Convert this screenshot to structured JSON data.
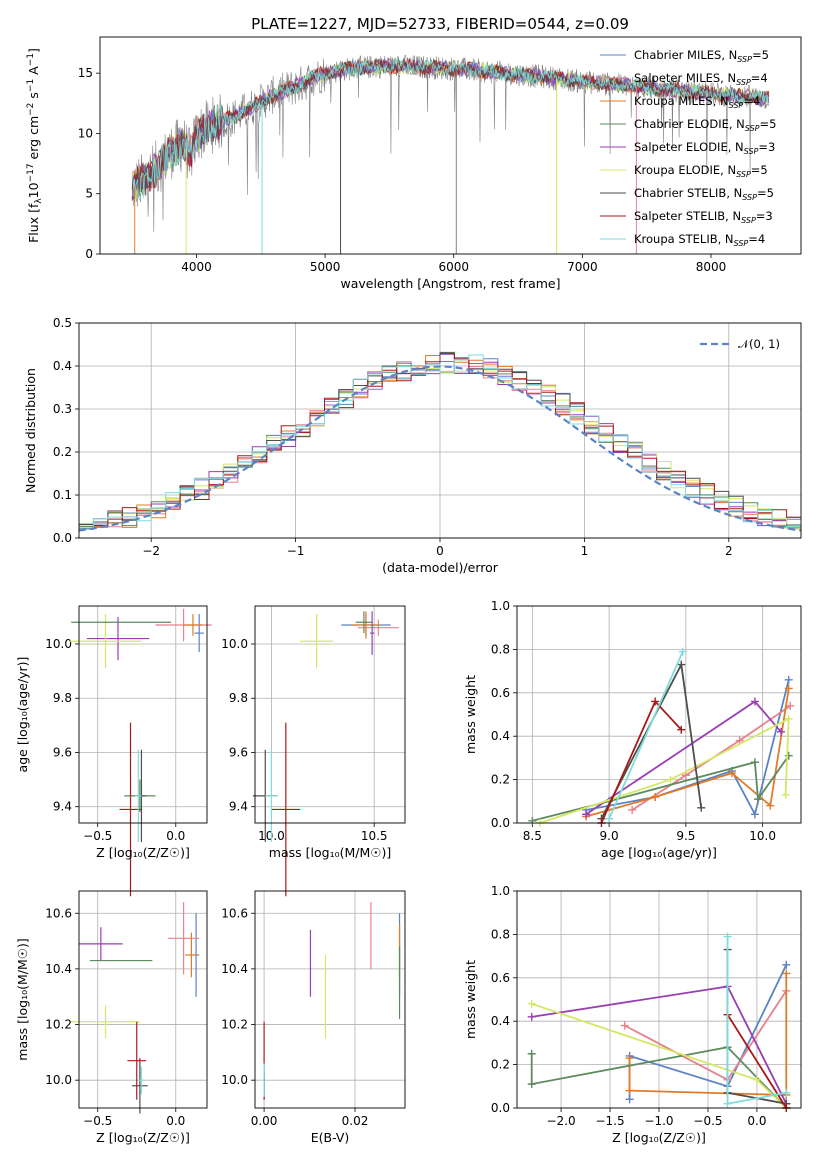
{
  "figure": {
    "title": "PLATE=1227, MJD=52733, FIBERID=0544, z=0.09"
  },
  "colors": {
    "chabrier_miles": "#5b84c4",
    "salpeter_miles": "#e8808e",
    "kroupa_miles": "#e07b29",
    "chabrier_elodie": "#5d8a5e",
    "salpeter_elodie": "#9a3fb2",
    "kroupa_elodie": "#d4e865",
    "chabrier_stelib": "#4e4e4e",
    "salpeter_stelib": "#a81a1a",
    "kroupa_stelib": "#7fdcdc",
    "data": "#808080"
  },
  "chart_data": [
    {
      "id": "spectrum",
      "type": "line",
      "xlabel": "wavelength [Angstrom, rest frame]",
      "ylabel_parts": [
        "Flux [f",
        "λ",
        "10",
        "−17",
        " erg cm",
        "−2",
        " s",
        "−1",
        " A",
        "−1",
        "]"
      ],
      "xlim": [
        3250,
        8700
      ],
      "ylim": [
        0,
        18
      ],
      "xticks": [
        4000,
        5000,
        6000,
        7000,
        8000
      ],
      "yticks": [
        0,
        5,
        10,
        15
      ],
      "legend": [
        {
          "label": "Chabrier MILES, N",
          "sub": "SSP",
          "eq": "=5",
          "color_key": "chabrier_miles"
        },
        {
          "label": "Salpeter MILES, N",
          "sub": "SSP",
          "eq": "=4",
          "color_key": "salpeter_miles"
        },
        {
          "label": "Kroupa MILES, N",
          "sub": "SSP",
          "eq": "=4",
          "color_key": "kroupa_miles"
        },
        {
          "label": "Chabrier ELODIE, N",
          "sub": "SSP",
          "eq": "=5",
          "color_key": "chabrier_elodie"
        },
        {
          "label": "Salpeter ELODIE, N",
          "sub": "SSP",
          "eq": "=3",
          "color_key": "salpeter_elodie"
        },
        {
          "label": "Kroupa ELODIE, N",
          "sub": "SSP",
          "eq": "=5",
          "color_key": "kroupa_elodie"
        },
        {
          "label": "Chabrier STELIB, N",
          "sub": "SSP",
          "eq": "=5",
          "color_key": "chabrier_stelib"
        },
        {
          "label": "Salpeter STELIB, N",
          "sub": "SSP",
          "eq": "=3",
          "color_key": "salpeter_stelib"
        },
        {
          "label": "Kroupa STELIB, N",
          "sub": "SSP",
          "eq": "=4",
          "color_key": "kroupa_stelib"
        }
      ],
      "continuum": [
        [
          3500,
          5.5
        ],
        [
          3600,
          6.2
        ],
        [
          3700,
          7.2
        ],
        [
          3800,
          8.5
        ],
        [
          3900,
          9.2
        ],
        [
          3950,
          8.0
        ],
        [
          4000,
          9.8
        ],
        [
          4100,
          10.6
        ],
        [
          4200,
          11.0
        ],
        [
          4300,
          11.4
        ],
        [
          4400,
          12.0
        ],
        [
          4500,
          12.6
        ],
        [
          4600,
          13.2
        ],
        [
          4700,
          13.6
        ],
        [
          4800,
          14.0
        ],
        [
          4900,
          14.6
        ],
        [
          5000,
          15.0
        ],
        [
          5200,
          15.4
        ],
        [
          5500,
          15.6
        ],
        [
          5800,
          15.5
        ],
        [
          6100,
          15.3
        ],
        [
          6400,
          15.0
        ],
        [
          6700,
          14.7
        ],
        [
          7000,
          14.3
        ],
        [
          7300,
          14.0
        ],
        [
          7600,
          13.7
        ],
        [
          7900,
          13.4
        ],
        [
          8200,
          13.1
        ],
        [
          8450,
          12.9
        ]
      ],
      "spikes": [
        [
          3520,
          0
        ],
        [
          3920,
          0
        ],
        [
          4510,
          0
        ],
        [
          5120,
          0
        ],
        [
          6020,
          0
        ],
        [
          6800,
          0
        ],
        [
          7420,
          0
        ]
      ]
    },
    {
      "id": "residuals",
      "type": "line",
      "xlabel": "(data-model)/error",
      "ylabel": "Normed distribution",
      "xlim": [
        -2.5,
        2.5
      ],
      "ylim": [
        0,
        0.5
      ],
      "xticks": [
        -2,
        -1,
        0,
        1,
        2
      ],
      "xtick_labels": [
        "−2",
        "−1",
        "0",
        "1",
        "2"
      ],
      "yticks": [
        0.0,
        0.1,
        0.2,
        0.3,
        0.4,
        0.5
      ],
      "ytick_labels": [
        "0.0",
        "0.1",
        "0.2",
        "0.3",
        "0.4",
        "0.5"
      ],
      "legend": [
        {
          "label": "𝒩(0, 1)",
          "color": "#5b84c4"
        }
      ],
      "bin_width": 0.1
    },
    {
      "id": "age-vs-z",
      "type": "scatter",
      "xlabel": "Z [log₁₀(Z/Z☉)]",
      "ylabel": "age  [log₁₀(age/yr)]",
      "xlim": [
        -0.62,
        0.2
      ],
      "ylim": [
        9.34,
        10.14
      ],
      "xticks": [
        -0.5,
        0.0
      ],
      "xtick_labels": [
        "−0.5",
        "0.0"
      ],
      "yticks": [
        9.4,
        9.6,
        9.8,
        10.0
      ],
      "yticks_labels": [
        "9.4",
        "9.6",
        "9.8",
        "10.0"
      ],
      "points": [
        {
          "c": "chabrier_miles",
          "x": 0.15,
          "y": 10.04,
          "xe": 0.03,
          "ye": 0.07
        },
        {
          "c": "salpeter_miles",
          "x": 0.05,
          "y": 10.07,
          "xe": 0.18,
          "ye": 0.06
        },
        {
          "c": "kroupa_miles",
          "x": 0.11,
          "y": 10.07,
          "xe": 0.06,
          "ye": 0.04
        },
        {
          "c": "chabrier_elodie",
          "x": -0.23,
          "y": 9.44,
          "xe": 0.1,
          "ye": 0.06
        },
        {
          "c": "salpeter_elodie",
          "x": -0.37,
          "y": 10.02,
          "xe": 0.2,
          "ye": 0.08
        },
        {
          "c": "kroupa_elodie",
          "x": -0.45,
          "y": 10.01,
          "xe": 0.23,
          "ye": 0.1
        },
        {
          "c": "chabrier_stelib",
          "x": -0.22,
          "y": 9.44,
          "xe": 0.03,
          "ye": 0.17
        },
        {
          "c": "salpeter_stelib",
          "x": -0.29,
          "y": 9.39,
          "xe": 0.07,
          "ye": 0.32
        },
        {
          "c": "kroupa_stelib",
          "x": -0.24,
          "y": 9.44,
          "xe": 0.02,
          "ye": 0.17
        },
        {
          "c": "chabrier_elodie",
          "x": -0.35,
          "y": 10.08,
          "xe": 0.32,
          "ye": 0.0
        }
      ]
    },
    {
      "id": "age-vs-mass",
      "type": "scatter",
      "xlabel": "mass [log₁₀(M/M☉)]",
      "xlim": [
        9.92,
        10.65
      ],
      "ylim": [
        9.34,
        10.14
      ],
      "xticks": [
        10.0,
        10.5
      ],
      "xtick_labels": [
        "10.0",
        "10.5"
      ],
      "yticks": [
        9.4,
        9.6,
        9.8,
        10.0
      ],
      "yticks_labels": [
        "9.4",
        "9.6",
        "9.8",
        "10.0"
      ],
      "points": [
        {
          "c": "chabrier_miles",
          "x": 10.46,
          "y": 10.07,
          "xe": 0.12,
          "ye": 0.04
        },
        {
          "c": "salpeter_miles",
          "x": 10.52,
          "y": 10.06,
          "xe": 0.1,
          "ye": 0.03
        },
        {
          "c": "kroupa_miles",
          "x": 10.46,
          "y": 10.07,
          "xe": 0.07,
          "ye": 0.05
        },
        {
          "c": "chabrier_elodie",
          "x": 10.45,
          "y": 10.08,
          "xe": 0.04,
          "ye": 0.04
        },
        {
          "c": "salpeter_elodie",
          "x": 10.49,
          "y": 10.04,
          "xe": 0.01,
          "ye": 0.08
        },
        {
          "c": "kroupa_elodie",
          "x": 10.22,
          "y": 10.01,
          "xe": 0.08,
          "ye": 0.1
        },
        {
          "c": "chabrier_stelib",
          "x": 9.97,
          "y": 9.44,
          "xe": 0.06,
          "ye": 0.17
        },
        {
          "c": "salpeter_stelib",
          "x": 10.07,
          "y": 9.39,
          "xe": 0.07,
          "ye": 0.32
        },
        {
          "c": "kroupa_stelib",
          "x": 10.0,
          "y": 9.44,
          "xe": 0.03,
          "ye": 0.17
        }
      ]
    },
    {
      "id": "weight-vs-age",
      "type": "line",
      "xlabel": "age  [log₁₀(age/yr)]",
      "ylabel": "mass weight",
      "xlim": [
        8.4,
        10.25
      ],
      "ylim": [
        0,
        1
      ],
      "xticks": [
        8.5,
        9.0,
        9.5,
        10.0
      ],
      "xtick_labels": [
        "8.5",
        "9.0",
        "9.5",
        "10.0"
      ],
      "yticks": [
        0.0,
        0.2,
        0.4,
        0.6,
        0.8,
        1.0
      ],
      "ytick_labels": [
        "0.0",
        "0.2",
        "0.4",
        "0.6",
        "0.8",
        "1.0"
      ],
      "series": [
        {
          "c": "chabrier_miles",
          "pts": [
            [
              8.85,
              0.06
            ],
            [
              9.3,
              0.12
            ],
            [
              9.8,
              0.24
            ],
            [
              9.95,
              0.04
            ],
            [
              10.17,
              0.66
            ]
          ]
        },
        {
          "c": "salpeter_miles",
          "pts": [
            [
              9.15,
              0.06
            ],
            [
              9.5,
              0.22
            ],
            [
              9.85,
              0.38
            ],
            [
              10.18,
              0.54
            ]
          ]
        },
        {
          "c": "kroupa_miles",
          "pts": [
            [
              8.85,
              0.03
            ],
            [
              9.3,
              0.12
            ],
            [
              9.8,
              0.23
            ],
            [
              10.05,
              0.08
            ],
            [
              10.17,
              0.62
            ]
          ]
        },
        {
          "c": "chabrier_elodie",
          "pts": [
            [
              8.5,
              0.01
            ],
            [
              9.0,
              0.1
            ],
            [
              9.95,
              0.28
            ],
            [
              9.97,
              0.11
            ],
            [
              10.17,
              0.31
            ]
          ]
        },
        {
          "c": "salpeter_elodie",
          "pts": [
            [
              8.85,
              0.04
            ],
            [
              9.95,
              0.56
            ],
            [
              10.12,
              0.42
            ]
          ]
        },
        {
          "c": "kroupa_elodie",
          "pts": [
            [
              8.55,
              0.0
            ],
            [
              9.4,
              0.2
            ],
            [
              10.17,
              0.48
            ],
            [
              10.15,
              0.13
            ]
          ]
        },
        {
          "c": "chabrier_stelib",
          "pts": [
            [
              8.95,
              0.02
            ],
            [
              9.47,
              0.73
            ],
            [
              9.6,
              0.07
            ]
          ]
        },
        {
          "c": "salpeter_stelib",
          "pts": [
            [
              8.95,
              0.0
            ],
            [
              9.3,
              0.56
            ],
            [
              9.47,
              0.43
            ]
          ]
        },
        {
          "c": "kroupa_stelib",
          "pts": [
            [
              9.0,
              0.02
            ],
            [
              9.48,
              0.79
            ]
          ]
        }
      ]
    },
    {
      "id": "mass-vs-z",
      "type": "scatter",
      "xlabel": "Z [log₁₀(Z/Z☉)]",
      "ylabel": "mass [log₁₀(M/M☉)]",
      "xlim": [
        -0.62,
        0.2
      ],
      "ylim": [
        9.9,
        10.68
      ],
      "xticks": [
        -0.5,
        0.0
      ],
      "xtick_labels": [
        "−0.5",
        "0.0"
      ],
      "yticks": [
        10.0,
        10.2,
        10.4,
        10.6
      ],
      "yticks_labels": [
        "10.0",
        "10.2",
        "10.4",
        "10.6"
      ],
      "points": [
        {
          "c": "chabrier_miles",
          "x": 0.13,
          "y": 10.45,
          "xe": 0.02,
          "ye": 0.15
        },
        {
          "c": "salpeter_miles",
          "x": 0.05,
          "y": 10.51,
          "xe": 0.1,
          "ye": 0.13
        },
        {
          "c": "kroupa_miles",
          "x": 0.1,
          "y": 10.45,
          "xe": 0.04,
          "ye": 0.08
        },
        {
          "c": "chabrier_elodie",
          "x": -0.35,
          "y": 10.43,
          "xe": 0.2,
          "ye": 0.0
        },
        {
          "c": "salpeter_elodie",
          "x": -0.48,
          "y": 10.49,
          "xe": 0.14,
          "ye": 0.06
        },
        {
          "c": "kroupa_elodie",
          "x": -0.45,
          "y": 10.21,
          "xe": 0.22,
          "ye": 0.06
        },
        {
          "c": "chabrier_stelib",
          "x": -0.23,
          "y": 9.98,
          "xe": 0.05,
          "ye": 0.1
        },
        {
          "c": "salpeter_stelib",
          "x": -0.25,
          "y": 10.07,
          "xe": 0.06,
          "ye": 0.14
        },
        {
          "c": "kroupa_stelib",
          "x": -0.22,
          "y": 10.0,
          "xe": 0.02,
          "ye": 0.05
        }
      ]
    },
    {
      "id": "mass-vs-ebv",
      "type": "scatter",
      "xlabel": "E(B-V)",
      "xlim": [
        -0.002,
        0.031
      ],
      "ylim": [
        9.9,
        10.68
      ],
      "xticks": [
        0.0,
        0.02
      ],
      "xtick_labels": [
        "0.00",
        "0.02"
      ],
      "yticks": [
        10.0,
        10.2,
        10.4,
        10.6
      ],
      "yticks_labels": [
        "10.0",
        "10.2",
        "10.4",
        "10.6"
      ],
      "points": [
        {
          "c": "chabrier_miles",
          "x": 0.0298,
          "y": 10.45,
          "ye": 0.15
        },
        {
          "c": "salpeter_miles",
          "x": 0.0235,
          "y": 10.52,
          "ye": 0.12
        },
        {
          "c": "kroupa_miles",
          "x": 0.0298,
          "y": 10.46,
          "ye": 0.1
        },
        {
          "c": "chabrier_elodie",
          "x": 0.0298,
          "y": 10.35,
          "ye": 0.13
        },
        {
          "c": "salpeter_elodie",
          "x": 0.0102,
          "y": 10.42,
          "ye": 0.12
        },
        {
          "c": "kroupa_elodie",
          "x": 0.0135,
          "y": 10.3,
          "ye": 0.15
        },
        {
          "c": "chabrier_stelib",
          "x": 0.0,
          "y": 9.98,
          "ye": 0.05
        },
        {
          "c": "salpeter_stelib",
          "x": 0.0,
          "y": 10.07,
          "ye": 0.14
        },
        {
          "c": "kroupa_stelib",
          "x": 0.0,
          "y": 10.0,
          "ye": 0.06
        }
      ]
    },
    {
      "id": "weight-vs-z",
      "type": "line",
      "xlabel": "Z [log₁₀(Z/Z☉)]",
      "ylabel": "mass weight",
      "xlim": [
        -2.45,
        0.45
      ],
      "ylim": [
        0,
        1
      ],
      "xticks": [
        -2.0,
        -1.5,
        -1.0,
        -0.5,
        0.0
      ],
      "xtick_labels": [
        "−2.0",
        "−1.5",
        "−1.0",
        "−0.5",
        "0.0"
      ],
      "yticks": [
        0.0,
        0.2,
        0.4,
        0.6,
        0.8,
        1.0
      ],
      "ytick_labels": [
        "0.0",
        "0.2",
        "0.4",
        "0.6",
        "0.8",
        "1.0"
      ],
      "series": [
        {
          "c": "chabrier_miles",
          "pts": [
            [
              -1.3,
              0.04
            ],
            [
              -1.3,
              0.24
            ],
            [
              -0.3,
              0.1
            ],
            [
              0.3,
              0.66
            ]
          ]
        },
        {
          "c": "salpeter_miles",
          "pts": [
            [
              -1.35,
              0.38
            ],
            [
              -0.3,
              0.13
            ],
            [
              0.3,
              0.54
            ]
          ]
        },
        {
          "c": "kroupa_miles",
          "pts": [
            [
              -1.3,
              0.23
            ],
            [
              -1.3,
              0.08
            ],
            [
              0.3,
              0.06
            ],
            [
              0.3,
              0.62
            ]
          ]
        },
        {
          "c": "chabrier_elodie",
          "pts": [
            [
              -2.3,
              0.25
            ],
            [
              -2.3,
              0.11
            ],
            [
              -0.3,
              0.28
            ],
            [
              0.3,
              0.0
            ]
          ]
        },
        {
          "c": "salpeter_elodie",
          "pts": [
            [
              -2.3,
              0.42
            ],
            [
              -0.3,
              0.56
            ],
            [
              0.3,
              0.02
            ]
          ]
        },
        {
          "c": "kroupa_elodie",
          "pts": [
            [
              -2.3,
              0.48
            ],
            [
              0.0,
              0.13
            ],
            [
              0.3,
              0.0
            ]
          ]
        },
        {
          "c": "chabrier_stelib",
          "pts": [
            [
              -0.3,
              0.73
            ],
            [
              -0.3,
              0.07
            ],
            [
              0.3,
              0.02
            ]
          ]
        },
        {
          "c": "salpeter_stelib",
          "pts": [
            [
              -0.3,
              0.43
            ],
            [
              0.3,
              0.0
            ]
          ]
        },
        {
          "c": "kroupa_stelib",
          "pts": [
            [
              -0.3,
              0.79
            ],
            [
              -0.3,
              0.02
            ],
            [
              0.3,
              0.07
            ]
          ]
        }
      ]
    }
  ]
}
